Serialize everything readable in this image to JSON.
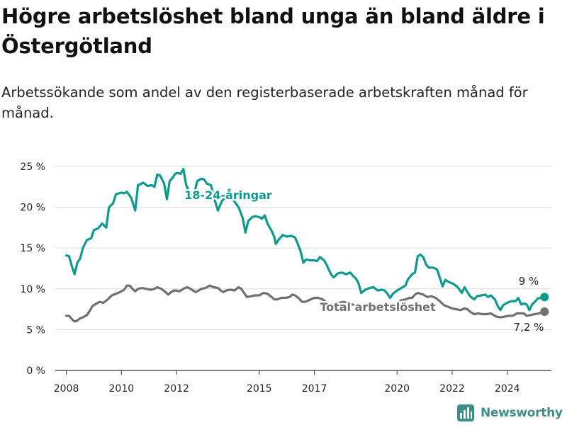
{
  "header": {
    "title": "Högre arbetslöshet bland unga än bland äldre i Östergötland",
    "subtitle": "Arbetssökande som andel av den registerbaserade arbetskraften månad för månad."
  },
  "brand": {
    "name": "Newsworthy",
    "color": "#3e8d86"
  },
  "colors": {
    "youth": "#0d9a8d",
    "total": "#707070",
    "grid": "#dcdcdc",
    "axis": "#333333"
  },
  "chart_data": {
    "type": "line",
    "title": "Högre arbetslöshet bland unga än bland äldre i Östergötland",
    "subtitle": "Arbetssökande som andel av den registerbaserade arbetskraften månad för månad.",
    "ylim": [
      0,
      25
    ],
    "xlim": [
      2007.6,
      2025.6
    ],
    "y_ticks": [
      0,
      5,
      10,
      15,
      20,
      25
    ],
    "y_tick_labels": [
      "0 %",
      "5 %",
      "10 %",
      "15 %",
      "20 %",
      "25 %"
    ],
    "x_ticks": [
      2008,
      2010,
      2012,
      2015,
      2017,
      2020,
      2022,
      2024
    ],
    "x_tick_labels": [
      "2008",
      "2010",
      "2012",
      "2015",
      "2017",
      "2020",
      "2022",
      "2024"
    ],
    "grid": true,
    "series": [
      {
        "name": "18-24-åringar",
        "color": "#0d9a8d",
        "end_label": "9 %",
        "points": [
          [
            2008.0,
            14.1
          ],
          [
            2008.1,
            14.0
          ],
          [
            2008.2,
            12.8
          ],
          [
            2008.3,
            11.8
          ],
          [
            2008.4,
            13.2
          ],
          [
            2008.5,
            13.7
          ],
          [
            2008.6,
            15.0
          ],
          [
            2008.75,
            16.0
          ],
          [
            2008.9,
            16.2
          ],
          [
            2009.0,
            17.2
          ],
          [
            2009.15,
            17.4
          ],
          [
            2009.3,
            18.0
          ],
          [
            2009.45,
            17.5
          ],
          [
            2009.55,
            20.0
          ],
          [
            2009.7,
            20.5
          ],
          [
            2009.8,
            21.6
          ],
          [
            2010.0,
            21.8
          ],
          [
            2010.1,
            21.7
          ],
          [
            2010.2,
            21.9
          ],
          [
            2010.35,
            21.2
          ],
          [
            2010.5,
            19.6
          ],
          [
            2010.6,
            22.7
          ],
          [
            2010.8,
            23.0
          ],
          [
            2010.95,
            22.6
          ],
          [
            2011.1,
            22.7
          ],
          [
            2011.2,
            22.5
          ],
          [
            2011.3,
            24.0
          ],
          [
            2011.4,
            23.9
          ],
          [
            2011.55,
            22.9
          ],
          [
            2011.65,
            21.0
          ],
          [
            2011.75,
            23.2
          ],
          [
            2011.85,
            23.6
          ],
          [
            2011.95,
            24.1
          ],
          [
            2012.05,
            24.2
          ],
          [
            2012.15,
            24.1
          ],
          [
            2012.25,
            24.7
          ],
          [
            2012.35,
            22.7
          ],
          [
            2012.45,
            22.0
          ],
          [
            2012.55,
            21.3
          ],
          [
            2012.65,
            21.8
          ],
          [
            2012.75,
            23.2
          ],
          [
            2012.9,
            23.5
          ],
          [
            2013.0,
            23.4
          ],
          [
            2013.1,
            22.9
          ],
          [
            2013.25,
            22.7
          ],
          [
            2013.35,
            21.3
          ],
          [
            2013.5,
            19.6
          ],
          [
            2013.65,
            20.8
          ],
          [
            2013.8,
            21.2
          ],
          [
            2013.95,
            21.4
          ],
          [
            2014.1,
            20.7
          ],
          [
            2014.25,
            20.0
          ],
          [
            2014.4,
            18.7
          ],
          [
            2014.5,
            16.9
          ],
          [
            2014.6,
            18.3
          ],
          [
            2014.75,
            18.8
          ],
          [
            2014.85,
            18.9
          ],
          [
            2015.0,
            18.8
          ],
          [
            2015.1,
            18.6
          ],
          [
            2015.2,
            19.0
          ],
          [
            2015.3,
            18.0
          ],
          [
            2015.45,
            17.1
          ],
          [
            2015.55,
            16.3
          ],
          [
            2015.6,
            15.5
          ],
          [
            2015.7,
            16.0
          ],
          [
            2015.85,
            16.6
          ],
          [
            2016.0,
            16.4
          ],
          [
            2016.15,
            16.5
          ],
          [
            2016.3,
            16.3
          ],
          [
            2016.4,
            15.5
          ],
          [
            2016.5,
            14.6
          ],
          [
            2016.6,
            13.2
          ],
          [
            2016.7,
            13.6
          ],
          [
            2016.85,
            13.5
          ],
          [
            2017.0,
            13.5
          ],
          [
            2017.1,
            13.4
          ],
          [
            2017.2,
            13.9
          ],
          [
            2017.35,
            13.5
          ],
          [
            2017.45,
            12.9
          ],
          [
            2017.6,
            11.8
          ],
          [
            2017.7,
            11.4
          ],
          [
            2017.85,
            11.9
          ],
          [
            2018.0,
            12.0
          ],
          [
            2018.15,
            11.8
          ],
          [
            2018.3,
            12.0
          ],
          [
            2018.4,
            11.6
          ],
          [
            2018.5,
            11.3
          ],
          [
            2018.6,
            10.7
          ],
          [
            2018.7,
            9.5
          ],
          [
            2018.85,
            9.9
          ],
          [
            2019.0,
            10.1
          ],
          [
            2019.15,
            10.2
          ],
          [
            2019.3,
            9.8
          ],
          [
            2019.45,
            9.9
          ],
          [
            2019.55,
            9.8
          ],
          [
            2019.65,
            9.4
          ],
          [
            2019.75,
            8.9
          ],
          [
            2019.85,
            9.4
          ],
          [
            2020.0,
            9.8
          ],
          [
            2020.15,
            10.1
          ],
          [
            2020.3,
            10.4
          ],
          [
            2020.4,
            11.2
          ],
          [
            2020.55,
            11.8
          ],
          [
            2020.65,
            12.0
          ],
          [
            2020.75,
            14.0
          ],
          [
            2020.85,
            14.2
          ],
          [
            2020.95,
            13.9
          ],
          [
            2021.05,
            13.0
          ],
          [
            2021.15,
            12.6
          ],
          [
            2021.3,
            12.6
          ],
          [
            2021.45,
            12.4
          ],
          [
            2021.55,
            11.4
          ],
          [
            2021.65,
            10.3
          ],
          [
            2021.75,
            11.1
          ],
          [
            2021.9,
            10.8
          ],
          [
            2022.05,
            10.6
          ],
          [
            2022.2,
            10.2
          ],
          [
            2022.35,
            9.5
          ],
          [
            2022.45,
            10.2
          ],
          [
            2022.55,
            9.6
          ],
          [
            2022.65,
            9.1
          ],
          [
            2022.8,
            8.7
          ],
          [
            2022.9,
            9.1
          ],
          [
            2023.05,
            9.2
          ],
          [
            2023.2,
            9.3
          ],
          [
            2023.3,
            9.0
          ],
          [
            2023.4,
            9.2
          ],
          [
            2023.55,
            8.7
          ],
          [
            2023.65,
            7.9
          ],
          [
            2023.75,
            7.4
          ],
          [
            2023.85,
            8.0
          ],
          [
            2024.0,
            8.3
          ],
          [
            2024.15,
            8.5
          ],
          [
            2024.3,
            8.5
          ],
          [
            2024.4,
            8.9
          ],
          [
            2024.5,
            8.1
          ],
          [
            2024.6,
            8.2
          ],
          [
            2024.7,
            8.1
          ],
          [
            2024.8,
            7.4
          ],
          [
            2024.9,
            8.1
          ],
          [
            2025.0,
            8.4
          ],
          [
            2025.1,
            8.8
          ],
          [
            2025.2,
            8.9
          ],
          [
            2025.35,
            9.0
          ]
        ]
      },
      {
        "name": "Total arbetslöshet",
        "color": "#707070",
        "end_label": "7,2 %",
        "points": [
          [
            2008.0,
            6.7
          ],
          [
            2008.1,
            6.7
          ],
          [
            2008.2,
            6.3
          ],
          [
            2008.3,
            6.0
          ],
          [
            2008.4,
            6.1
          ],
          [
            2008.5,
            6.4
          ],
          [
            2008.6,
            6.5
          ],
          [
            2008.75,
            6.8
          ],
          [
            2008.85,
            7.3
          ],
          [
            2008.95,
            7.9
          ],
          [
            2009.1,
            8.2
          ],
          [
            2009.2,
            8.4
          ],
          [
            2009.35,
            8.3
          ],
          [
            2009.5,
            8.7
          ],
          [
            2009.65,
            9.2
          ],
          [
            2009.8,
            9.4
          ],
          [
            2009.95,
            9.6
          ],
          [
            2010.1,
            9.9
          ],
          [
            2010.2,
            10.4
          ],
          [
            2010.3,
            10.4
          ],
          [
            2010.4,
            10.0
          ],
          [
            2010.5,
            9.7
          ],
          [
            2010.6,
            10.0
          ],
          [
            2010.75,
            10.1
          ],
          [
            2010.9,
            10.0
          ],
          [
            2011.05,
            9.9
          ],
          [
            2011.2,
            10.0
          ],
          [
            2011.3,
            10.2
          ],
          [
            2011.45,
            10.0
          ],
          [
            2011.6,
            9.6
          ],
          [
            2011.7,
            9.3
          ],
          [
            2011.8,
            9.6
          ],
          [
            2011.9,
            9.8
          ],
          [
            2012.0,
            9.8
          ],
          [
            2012.1,
            9.7
          ],
          [
            2012.2,
            9.9
          ],
          [
            2012.3,
            10.1
          ],
          [
            2012.4,
            10.2
          ],
          [
            2012.5,
            10.0
          ],
          [
            2012.6,
            9.8
          ],
          [
            2012.7,
            9.6
          ],
          [
            2012.8,
            9.8
          ],
          [
            2012.9,
            10.0
          ],
          [
            2013.05,
            10.1
          ],
          [
            2013.2,
            10.4
          ],
          [
            2013.35,
            10.2
          ],
          [
            2013.5,
            10.1
          ],
          [
            2013.6,
            9.8
          ],
          [
            2013.7,
            9.6
          ],
          [
            2013.8,
            9.8
          ],
          [
            2013.95,
            9.9
          ],
          [
            2014.1,
            9.8
          ],
          [
            2014.25,
            10.2
          ],
          [
            2014.35,
            10.0
          ],
          [
            2014.45,
            9.5
          ],
          [
            2014.55,
            9.0
          ],
          [
            2014.7,
            9.1
          ],
          [
            2014.85,
            9.2
          ],
          [
            2015.0,
            9.2
          ],
          [
            2015.15,
            9.5
          ],
          [
            2015.3,
            9.4
          ],
          [
            2015.45,
            9.0
          ],
          [
            2015.55,
            8.7
          ],
          [
            2015.65,
            8.7
          ],
          [
            2015.8,
            8.9
          ],
          [
            2015.95,
            8.9
          ],
          [
            2016.1,
            9.0
          ],
          [
            2016.2,
            9.3
          ],
          [
            2016.3,
            9.2
          ],
          [
            2016.45,
            8.8
          ],
          [
            2016.55,
            8.4
          ],
          [
            2016.65,
            8.4
          ],
          [
            2016.8,
            8.6
          ],
          [
            2017.0,
            8.9
          ],
          [
            2017.15,
            8.9
          ],
          [
            2017.3,
            8.7
          ],
          [
            2017.45,
            8.3
          ],
          [
            2017.6,
            8.0
          ],
          [
            2017.75,
            8.1
          ],
          [
            2017.9,
            8.3
          ],
          [
            2018.05,
            8.4
          ],
          [
            2018.2,
            8.3
          ],
          [
            2018.35,
            8.1
          ],
          [
            2018.5,
            8.0
          ],
          [
            2018.65,
            7.8
          ],
          [
            2018.8,
            7.8
          ],
          [
            2018.95,
            8.0
          ],
          [
            2019.1,
            8.0
          ],
          [
            2019.25,
            7.8
          ],
          [
            2019.4,
            7.8
          ],
          [
            2019.55,
            7.7
          ],
          [
            2019.7,
            7.7
          ],
          [
            2019.85,
            8.0
          ],
          [
            2020.0,
            8.3
          ],
          [
            2020.15,
            8.6
          ],
          [
            2020.3,
            8.7
          ],
          [
            2020.45,
            8.9
          ],
          [
            2020.55,
            8.9
          ],
          [
            2020.65,
            9.3
          ],
          [
            2020.75,
            9.5
          ],
          [
            2020.85,
            9.4
          ],
          [
            2020.95,
            9.3
          ],
          [
            2021.1,
            9.0
          ],
          [
            2021.25,
            9.1
          ],
          [
            2021.4,
            8.9
          ],
          [
            2021.55,
            8.5
          ],
          [
            2021.7,
            8.0
          ],
          [
            2021.85,
            7.8
          ],
          [
            2022.0,
            7.6
          ],
          [
            2022.15,
            7.5
          ],
          [
            2022.3,
            7.4
          ],
          [
            2022.45,
            7.6
          ],
          [
            2022.55,
            7.5
          ],
          [
            2022.65,
            7.2
          ],
          [
            2022.8,
            6.9
          ],
          [
            2022.95,
            7.0
          ],
          [
            2023.1,
            6.9
          ],
          [
            2023.25,
            6.9
          ],
          [
            2023.4,
            7.0
          ],
          [
            2023.5,
            6.8
          ],
          [
            2023.6,
            6.6
          ],
          [
            2023.75,
            6.5
          ],
          [
            2023.9,
            6.6
          ],
          [
            2024.05,
            6.7
          ],
          [
            2024.2,
            6.7
          ],
          [
            2024.35,
            7.0
          ],
          [
            2024.5,
            7.0
          ],
          [
            2024.6,
            7.0
          ],
          [
            2024.7,
            6.7
          ],
          [
            2024.85,
            6.8
          ],
          [
            2025.0,
            6.9
          ],
          [
            2025.15,
            7.0
          ],
          [
            2025.35,
            7.2
          ]
        ]
      }
    ]
  }
}
